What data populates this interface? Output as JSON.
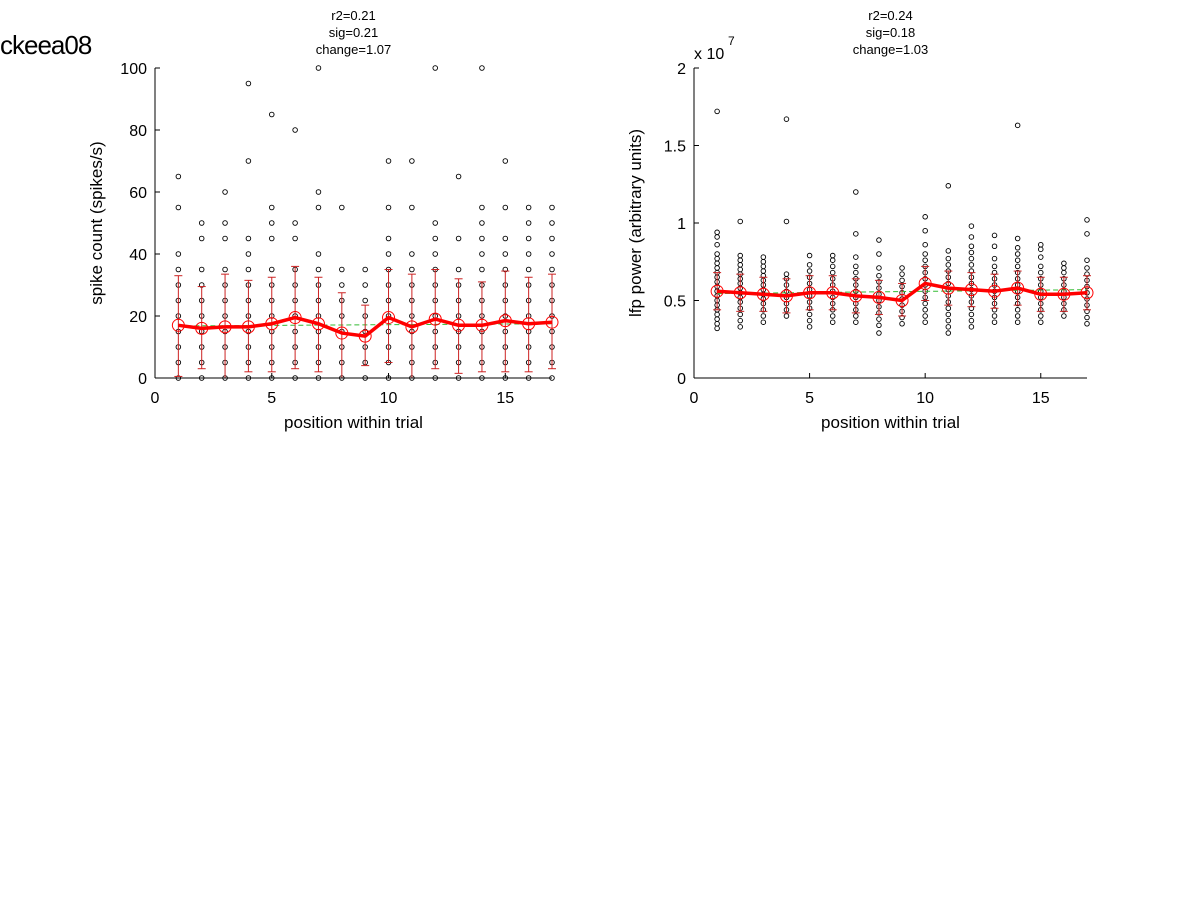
{
  "figure_label": "ckeea08",
  "colors": {
    "mean_line": "#ff0000",
    "error_bar": "#cc2222",
    "mean_marker": "#ff0000",
    "fit_line": "#33bb33",
    "points": "#000000"
  },
  "chart_data": [
    {
      "type": "scatter",
      "title_lines": [
        "r2=0.21",
        "sig=0.21",
        "change=1.07"
      ],
      "xlabel": "position within trial",
      "ylabel": "spike count (spikes/s)",
      "xlim": [
        0,
        17
      ],
      "ylim": [
        0,
        100
      ],
      "xticks": [
        0,
        5,
        10,
        15
      ],
      "yticks": [
        0,
        20,
        40,
        60,
        80,
        100
      ],
      "ytick_labels": [
        "0",
        "20",
        "40",
        "60",
        "80",
        "100"
      ],
      "exponent_label": "",
      "x": [
        1,
        2,
        3,
        4,
        5,
        6,
        7,
        8,
        9,
        10,
        11,
        12,
        13,
        14,
        15,
        16,
        17
      ],
      "mean": [
        17,
        16,
        16.5,
        16.5,
        17.5,
        19.5,
        17.5,
        14.5,
        13.5,
        19.5,
        16.5,
        19,
        17,
        17,
        18.5,
        17.5,
        18
      ],
      "err_low": [
        0.5,
        3,
        0,
        2,
        2,
        3,
        2,
        0,
        4,
        5,
        0,
        3,
        1.5,
        2,
        2,
        2,
        3
      ],
      "err_high": [
        33,
        29.5,
        33.5,
        31.5,
        32.5,
        36,
        32.5,
        27.5,
        23.5,
        35,
        33.5,
        35,
        32,
        31,
        34.5,
        32.5,
        33.5
      ],
      "fit": [
        16.8,
        17.5
      ],
      "points": [
        [
          0,
          5,
          10,
          15,
          20,
          25,
          30,
          35,
          40,
          55,
          65
        ],
        [
          0,
          5,
          10,
          15,
          20,
          25,
          30,
          35,
          45,
          50
        ],
        [
          0,
          5,
          10,
          15,
          20,
          25,
          30,
          35,
          45,
          50,
          60
        ],
        [
          0,
          5,
          10,
          15,
          20,
          25,
          30,
          35,
          40,
          45,
          70,
          95
        ],
        [
          0,
          5,
          10,
          15,
          20,
          25,
          30,
          35,
          45,
          50,
          55,
          85
        ],
        [
          0,
          5,
          10,
          15,
          20,
          25,
          30,
          35,
          45,
          50,
          80
        ],
        [
          0,
          5,
          10,
          15,
          20,
          25,
          30,
          35,
          40,
          55,
          60,
          100
        ],
        [
          0,
          5,
          10,
          15,
          20,
          25,
          30,
          35,
          55
        ],
        [
          0,
          5,
          10,
          15,
          20,
          25,
          30,
          35
        ],
        [
          0,
          5,
          10,
          15,
          20,
          25,
          30,
          35,
          40,
          45,
          55,
          70
        ],
        [
          0,
          5,
          10,
          15,
          20,
          25,
          30,
          35,
          40,
          55,
          70
        ],
        [
          0,
          5,
          10,
          15,
          20,
          25,
          30,
          35,
          40,
          45,
          50,
          100
        ],
        [
          0,
          5,
          10,
          15,
          20,
          25,
          30,
          35,
          45,
          65
        ],
        [
          0,
          5,
          10,
          15,
          20,
          25,
          30,
          35,
          40,
          45,
          50,
          55,
          100
        ],
        [
          0,
          5,
          10,
          15,
          20,
          25,
          30,
          35,
          40,
          45,
          55,
          70
        ],
        [
          0,
          5,
          10,
          15,
          20,
          25,
          30,
          35,
          40,
          45,
          50,
          55
        ],
        [
          0,
          5,
          10,
          15,
          20,
          25,
          30,
          35,
          40,
          45,
          50,
          55
        ]
      ]
    },
    {
      "type": "scatter",
      "title_lines": [
        "r2=0.24",
        "sig=0.18",
        "change=1.03"
      ],
      "xlabel": "position within trial",
      "ylabel": "lfp power (arbitrary units)",
      "xlim": [
        0,
        17
      ],
      "ylim": [
        0,
        2
      ],
      "xticks": [
        0,
        5,
        10,
        15
      ],
      "yticks": [
        0,
        0.5,
        1,
        1.5,
        2
      ],
      "ytick_labels": [
        "0",
        "0.5",
        "1",
        "1.5",
        "2"
      ],
      "exponent_label": "x 10",
      "exponent_power": "7",
      "x": [
        1,
        2,
        3,
        4,
        5,
        6,
        7,
        8,
        9,
        10,
        11,
        12,
        13,
        14,
        15,
        16,
        17
      ],
      "mean": [
        0.56,
        0.55,
        0.54,
        0.53,
        0.55,
        0.55,
        0.53,
        0.52,
        0.5,
        0.61,
        0.58,
        0.57,
        0.56,
        0.58,
        0.54,
        0.54,
        0.55
      ],
      "err_low": [
        0.44,
        0.43,
        0.43,
        0.42,
        0.44,
        0.44,
        0.42,
        0.41,
        0.4,
        0.5,
        0.47,
        0.46,
        0.45,
        0.47,
        0.43,
        0.43,
        0.44
      ],
      "err_high": [
        0.68,
        0.67,
        0.65,
        0.64,
        0.66,
        0.66,
        0.64,
        0.63,
        0.61,
        0.72,
        0.69,
        0.68,
        0.67,
        0.69,
        0.65,
        0.65,
        0.66
      ],
      "fit": [
        0.545,
        0.57
      ],
      "points": [
        [
          0.32,
          0.35,
          0.38,
          0.41,
          0.44,
          0.47,
          0.5,
          0.53,
          0.56,
          0.59,
          0.62,
          0.65,
          0.68,
          0.71,
          0.74,
          0.77,
          0.8,
          0.86,
          0.91,
          0.94,
          1.72
        ],
        [
          0.33,
          0.37,
          0.41,
          0.45,
          0.49,
          0.52,
          0.55,
          0.58,
          0.61,
          0.64,
          0.67,
          0.7,
          0.73,
          0.76,
          0.79,
          1.01
        ],
        [
          0.36,
          0.4,
          0.44,
          0.48,
          0.51,
          0.54,
          0.57,
          0.6,
          0.63,
          0.66,
          0.69,
          0.72,
          0.75,
          0.78
        ],
        [
          0.4,
          0.44,
          0.48,
          0.52,
          0.56,
          0.6,
          0.64,
          0.67,
          1.01,
          1.67
        ],
        [
          0.33,
          0.37,
          0.41,
          0.45,
          0.49,
          0.53,
          0.57,
          0.61,
          0.65,
          0.69,
          0.73,
          0.79
        ],
        [
          0.36,
          0.4,
          0.44,
          0.48,
          0.52,
          0.56,
          0.6,
          0.64,
          0.68,
          0.72,
          0.76,
          0.79
        ],
        [
          0.36,
          0.4,
          0.44,
          0.48,
          0.52,
          0.56,
          0.6,
          0.64,
          0.68,
          0.72,
          0.78,
          0.93,
          1.2
        ],
        [
          0.29,
          0.34,
          0.38,
          0.42,
          0.46,
          0.5,
          0.54,
          0.58,
          0.62,
          0.66,
          0.71,
          0.8,
          0.89
        ],
        [
          0.35,
          0.39,
          0.43,
          0.47,
          0.51,
          0.55,
          0.59,
          0.63,
          0.67,
          0.71
        ],
        [
          0.36,
          0.4,
          0.44,
          0.48,
          0.52,
          0.56,
          0.6,
          0.64,
          0.68,
          0.72,
          0.76,
          0.8,
          0.86,
          0.95,
          1.04
        ],
        [
          0.29,
          0.33,
          0.37,
          0.41,
          0.45,
          0.49,
          0.53,
          0.57,
          0.61,
          0.65,
          0.69,
          0.73,
          0.77,
          0.82,
          1.24
        ],
        [
          0.33,
          0.37,
          0.41,
          0.45,
          0.49,
          0.53,
          0.57,
          0.61,
          0.65,
          0.69,
          0.73,
          0.77,
          0.81,
          0.85,
          0.91,
          0.98
        ],
        [
          0.36,
          0.4,
          0.44,
          0.48,
          0.52,
          0.56,
          0.6,
          0.64,
          0.68,
          0.72,
          0.77,
          0.85,
          0.92
        ],
        [
          0.36,
          0.4,
          0.44,
          0.48,
          0.52,
          0.56,
          0.6,
          0.64,
          0.68,
          0.72,
          0.76,
          0.8,
          0.84,
          0.9,
          1.63
        ],
        [
          0.36,
          0.4,
          0.44,
          0.48,
          0.52,
          0.56,
          0.6,
          0.64,
          0.68,
          0.72,
          0.78,
          0.83,
          0.86
        ],
        [
          0.4,
          0.44,
          0.48,
          0.52,
          0.56,
          0.6,
          0.64,
          0.68,
          0.71,
          0.74
        ],
        [
          0.35,
          0.39,
          0.43,
          0.47,
          0.51,
          0.55,
          0.59,
          0.63,
          0.67,
          0.71,
          0.76,
          0.93,
          1.02
        ]
      ]
    }
  ]
}
